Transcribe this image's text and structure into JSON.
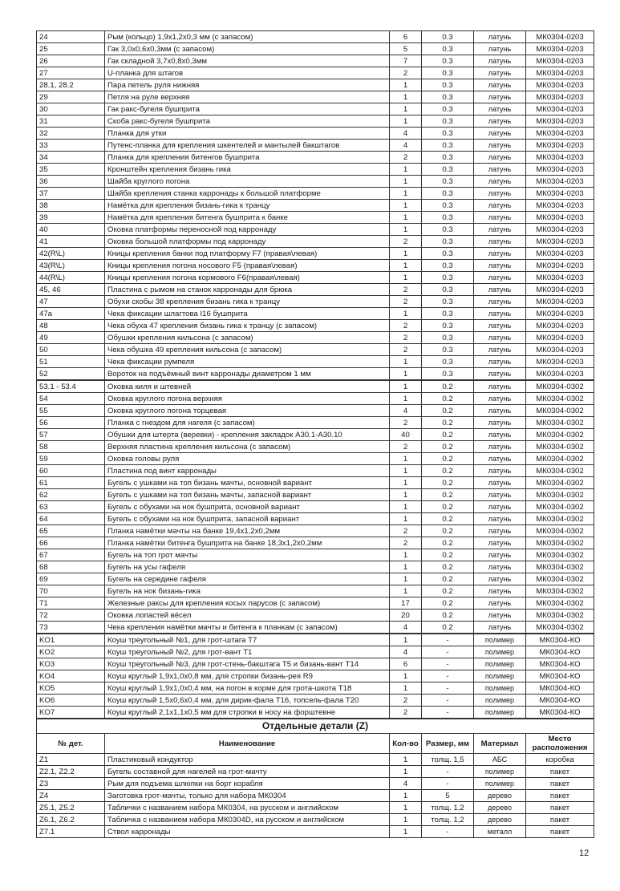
{
  "groups": [
    {
      "rows": [
        [
          "24",
          "Рым (кольцо) 1,9х1,2х0,3 мм (с запасом)",
          "6",
          "0.3",
          "латунь",
          "МК0304-0203"
        ],
        [
          "25",
          "Гак 3,0х0,6х0,3мм (с запасом)",
          "5",
          "0.3",
          "латунь",
          "МК0304-0203"
        ],
        [
          "26",
          "Гак складной 3,7х0,8х0,3мм",
          "7",
          "0.3",
          "латунь",
          "МК0304-0203"
        ],
        [
          "27",
          "U-планка для штагов",
          "2",
          "0.3",
          "латунь",
          "МК0304-0203"
        ],
        [
          "28.1, 28.2",
          "Пара петель руля нижняя",
          "1",
          "0.3",
          "латунь",
          "МК0304-0203"
        ],
        [
          "29",
          "Петля на руле верхняя",
          "1",
          "0.3",
          "латунь",
          "МК0304-0203"
        ],
        [
          "30",
          "Гак ракс-бугеля бушприта",
          "1",
          "0.3",
          "латунь",
          "МК0304-0203"
        ],
        [
          "31",
          "Скоба ракс-бугеля бушприта",
          "1",
          "0.3",
          "латунь",
          "МК0304-0203"
        ],
        [
          "32",
          "Планка для утки",
          "4",
          "0.3",
          "латунь",
          "МК0304-0203"
        ],
        [
          "33",
          "Путенс-планка для крепления шкентелей и мантылей бакштагов",
          "4",
          "0.3",
          "латунь",
          "МК0304-0203"
        ],
        [
          "34",
          "Планка для крепления битенгов бушприта",
          "2",
          "0.3",
          "латунь",
          "МК0304-0203"
        ],
        [
          "35",
          "Кронштейн крепления бизань гика",
          "1",
          "0.3",
          "латунь",
          "МК0304-0203"
        ],
        [
          "36",
          "Шайба круглого погона",
          "1",
          "0.3",
          "латунь",
          "МК0304-0203"
        ],
        [
          "37",
          "Шайба крепления станка карронады к большой платформе",
          "1",
          "0.3",
          "латунь",
          "МК0304-0203"
        ],
        [
          "38",
          "Намётка для крепления  бизань-гика к транцу",
          "1",
          "0.3",
          "латунь",
          "МК0304-0203"
        ],
        [
          "39",
          "Намётка для крепления битенга бушприта к банке",
          "1",
          "0.3",
          "латунь",
          "МК0304-0203"
        ],
        [
          "40",
          "Оковка платформы переносной под карронаду",
          "1",
          "0.3",
          "латунь",
          "МК0304-0203"
        ],
        [
          "41",
          "Оковка большой платформы под карронаду",
          "2",
          "0.3",
          "латунь",
          "МК0304-0203"
        ],
        [
          "42(R\\L)",
          "Кницы крепления банки под платформу F7 (правая\\левая)",
          "1",
          "0.3",
          "латунь",
          "МК0304-0203"
        ],
        [
          "43(R\\L)",
          "Кницы крепления погона носового F5 (правая\\левая)",
          "1",
          "0.3",
          "латунь",
          "МК0304-0203"
        ],
        [
          "44(R\\L)",
          "Кницы крепления погона кормового F6(правая\\левая)",
          "1",
          "0.3",
          "латунь",
          "МК0304-0203"
        ],
        [
          "45, 46",
          "Пластина с рымом на станок карронады для брюка",
          "2",
          "0.3",
          "латунь",
          "МК0304-0203"
        ],
        [
          "47",
          "Обухи скобы 38 крепления бизань гика к транцу",
          "2",
          "0.3",
          "латунь",
          "МК0304-0203"
        ],
        [
          "47a",
          "Чека фиксации шлагтова I16 бушприта",
          "1",
          "0.3",
          "латунь",
          "МК0304-0203"
        ],
        [
          "48",
          "Чека обуха 47 крепления бизань гика к транцу (с запасом)",
          "2",
          "0.3",
          "латунь",
          "МК0304-0203"
        ],
        [
          "49",
          "Обушки крепления кильсона (с запасом)",
          "2",
          "0.3",
          "латунь",
          "МК0304-0203"
        ],
        [
          "50",
          "Чека обушка 49 крепления кильсона (с запасом)",
          "2",
          "0.3",
          "латунь",
          "МК0304-0203"
        ],
        [
          "51",
          "Чека фиксации румпеля",
          "1",
          "0.3",
          "латунь",
          "МК0304-0203"
        ],
        [
          "52",
          "Вороток на подъёмный винт карронады диаметром 1 мм",
          "1",
          "0.3",
          "латунь",
          "МК0304-0203"
        ]
      ]
    },
    {
      "rows": [
        [
          "53.1 - 53.4",
          "Оковка киля и штевней",
          "1",
          "0.2",
          "латунь",
          "МК0304-0302"
        ],
        [
          "54",
          "Оковка круглого погона верхняя",
          "1",
          "0.2",
          "латунь",
          "МК0304-0302"
        ],
        [
          "55",
          "Оковка круглого погона торцевая",
          "4",
          "0.2",
          "латунь",
          "МК0304-0302"
        ],
        [
          "56",
          "Планка с гнездом для нагеля (с запасом)",
          "2",
          "0.2",
          "латунь",
          "МК0304-0302"
        ],
        [
          "57",
          "Обушки для штерта (веревки) - крепления закладок А30.1-А30.10",
          "40",
          "0.2",
          "латунь",
          "МК0304-0302"
        ],
        [
          "58",
          "Верхняя пластина крепления кильсона (с запасом)",
          "2",
          "0.2",
          "латунь",
          "МК0304-0302"
        ],
        [
          "59",
          "Оковка головы руля",
          "1",
          "0.2",
          "латунь",
          "МК0304-0302"
        ],
        [
          "60",
          "Пластина под винт карронады",
          "1",
          "0.2",
          "латунь",
          "МК0304-0302"
        ],
        [
          "61",
          "Бугель с ушками на топ бизань мачты, основной вариант",
          "1",
          "0.2",
          "латунь",
          "МК0304-0302"
        ],
        [
          "62",
          "Бугель с ушками на топ бизань мачты, запасной вариант",
          "1",
          "0.2",
          "латунь",
          "МК0304-0302"
        ],
        [
          "63",
          "Бугель с обухами на нок бушприта, основной вариант",
          "1",
          "0.2",
          "латунь",
          "МК0304-0302"
        ],
        [
          "64",
          "Бугель с обухами на нок бушприта, запасной вариант",
          "1",
          "0.2",
          "латунь",
          "МК0304-0302"
        ],
        [
          "65",
          "Планка намётки мачты на банке 19,4х1,2х0,2мм",
          "2",
          "0.2",
          "латунь",
          "МК0304-0302"
        ],
        [
          "66",
          "Планка намётки битенга бушприта на банке 18,3х1,2х0,2мм",
          "2",
          "0.2",
          "латунь",
          "МК0304-0302"
        ],
        [
          "67",
          "Бугель на топ грот мачты",
          "1",
          "0.2",
          "латунь",
          "МК0304-0302"
        ],
        [
          "68",
          "Бугель на усы гафеля",
          "1",
          "0.2",
          "латунь",
          "МК0304-0302"
        ],
        [
          "69",
          "Бугель на середине гафеля",
          "1",
          "0.2",
          "латунь",
          "МК0304-0302"
        ],
        [
          "70",
          "Бугель на нок бизань-гика",
          "1",
          "0.2",
          "латунь",
          "МК0304-0302"
        ],
        [
          "71",
          "Железные раксы для крепления косых парусов (с запасом)",
          "17",
          "0.2",
          "латунь",
          "МК0304-0302"
        ],
        [
          "72",
          "Оковка лопастей вёсел",
          "20",
          "0.2",
          "латунь",
          "МК0304-0302"
        ],
        [
          "73",
          "Чека крепления намётки мачты и битенга к планкам   (с запасом)",
          "4",
          "0.2",
          "латунь",
          "МК0304-0302"
        ]
      ]
    },
    {
      "rows": [
        [
          "KO1",
          "Коуш треугольный №1,  для грот-штага Т7",
          "1",
          "-",
          "полимер",
          "МК0304-КО"
        ],
        [
          "KO2",
          "Коуш треугольный №2, для грот-вант Т1",
          "4",
          "-",
          "полимер",
          "МК0304-КО"
        ],
        [
          "KO3",
          "Коуш треугольный №3, для грот-стень-бакштага Т5 и бизань-вант Т14",
          "6",
          "-",
          "полимер",
          "МК0304-КО"
        ],
        [
          "KO4",
          "Коуш круглый 1,9х1,0х0,8 мм, для стропки бизань-рея R9",
          "1",
          "-",
          "полимер",
          "МК0304-КО"
        ],
        [
          "KO5",
          "Коуш круглый 1,9х1,0х0,4 мм, на погон в корме для грота-шкота Т18",
          "1",
          "-",
          "полимер",
          "МК0304-КО"
        ],
        [
          "KO6",
          "Коуш круглый 1,5х0,6х0,4 мм, для дирик-фала Т16, топсель-фала Т20",
          "2",
          "-",
          "полимер",
          "МК0304-КО"
        ],
        [
          "KO7",
          "Коуш круглый 2,1х1,1х0,5 мм для стропки в носу на форштевне",
          "2",
          "-",
          "полимер",
          "МК0304-КО"
        ]
      ]
    }
  ],
  "separate": {
    "title": "Отдельные детали (Z)",
    "headers": [
      "№ дет.",
      "Наименование",
      "Кол-во",
      "Размер, мм",
      "Материал",
      "Место расположения"
    ],
    "rows": [
      [
        "Z1",
        "Пластиковый кондуктор",
        "1",
        "толщ. 1,5",
        "АБС",
        "коробка"
      ],
      [
        "Z2.1, Z2.2",
        "Бугель составной для нагелей на грот-мачту",
        "1",
        "-",
        "полимер",
        "пакет"
      ],
      [
        "Z3",
        "Рым для подъема шлюпки на борт корабля",
        "4",
        "-",
        "полимер",
        "пакет"
      ],
      [
        "Z4",
        "Заготовка грот-мачты, только для набора МК0304",
        "1",
        "5",
        "дерево",
        "пакет"
      ],
      [
        "Z5.1, Z5.2",
        "Таблички с названием набора МК0304, на русском и английском",
        "1",
        "толщ. 1,2",
        "дерево",
        "пакет"
      ],
      [
        "Z6.1, Z6.2",
        "Табличка с названием набора МК0304D, на русском и английском",
        "1",
        "толщ. 1,2",
        "дерево",
        "пакет"
      ],
      [
        "Z7.1",
        "Ствол карронады",
        "1",
        "-",
        "металл",
        "пакет"
      ]
    ]
  },
  "page_number": "12"
}
